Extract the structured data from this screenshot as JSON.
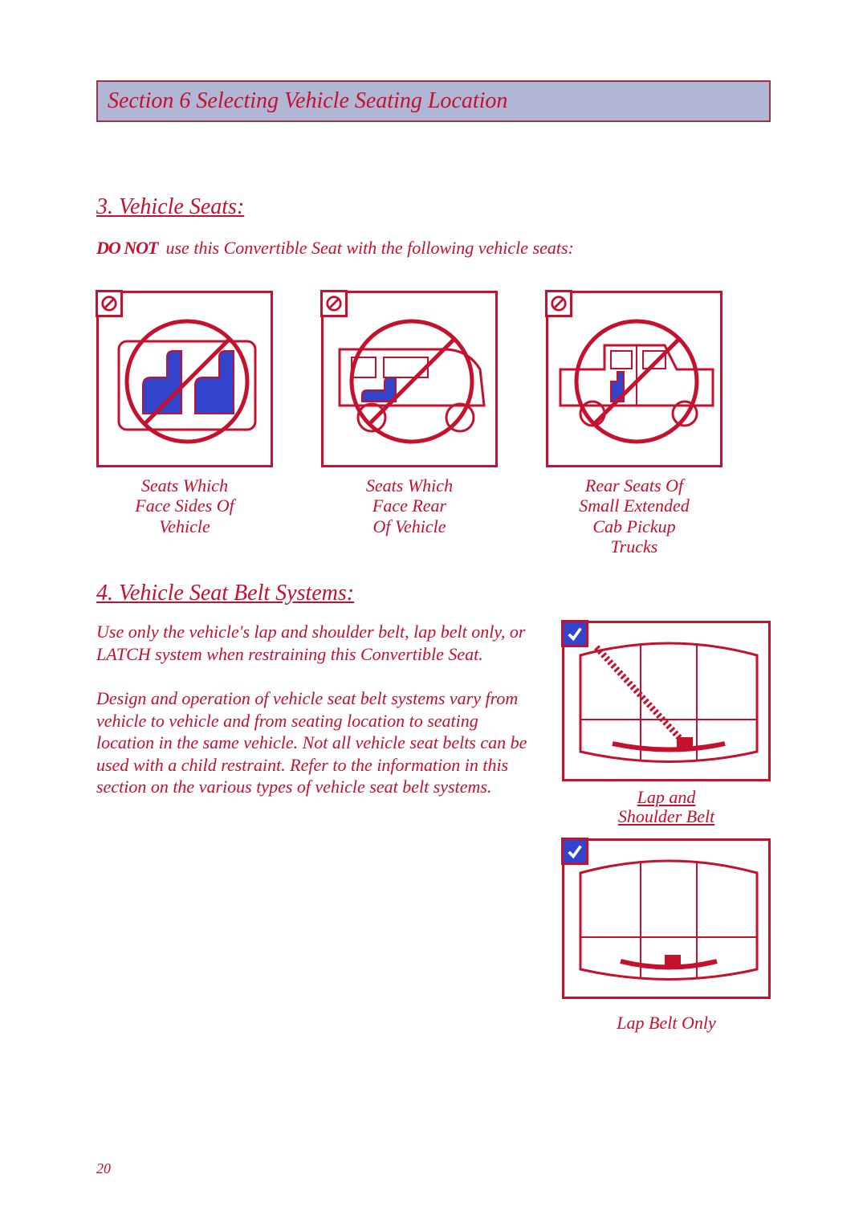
{
  "header": "Section 6  Selecting Vehicle Seating Location",
  "sub3": "3.  Vehicle Seats:",
  "warn_bold": "DO NOT",
  "warn_rest": "use this Convertible Seat with the following vehicle seats:",
  "seat_captions": [
    "Seats Which\nFace Sides Of\nVehicle",
    "Seats Which\nFace Rear\nOf Vehicle",
    "Rear Seats Of\nSmall Extended\nCab Pickup\nTrucks"
  ],
  "sub4": "4.  Vehicle Seat Belt Systems:",
  "body_p1": "Use only the vehicle's lap and shoulder belt, lap belt only, or LATCH system when restraining this Convertible Seat.",
  "body_p2": "Design and operation of vehicle seat belt systems vary from vehicle to vehicle and from seating location to seating location in the same vehicle. Not all vehicle seat belts can be used with a child restraint. Refer to the information in this section on the various types of vehicle seat belt systems.",
  "belt_caption1": "Lap and\nShoulder Belt",
  "belt_caption2": "Lap Belt Only",
  "page_num": "20",
  "colors": {
    "red": "#c5102e",
    "header_bg": "#b0b6d4",
    "check_bg": "#3344cc"
  }
}
